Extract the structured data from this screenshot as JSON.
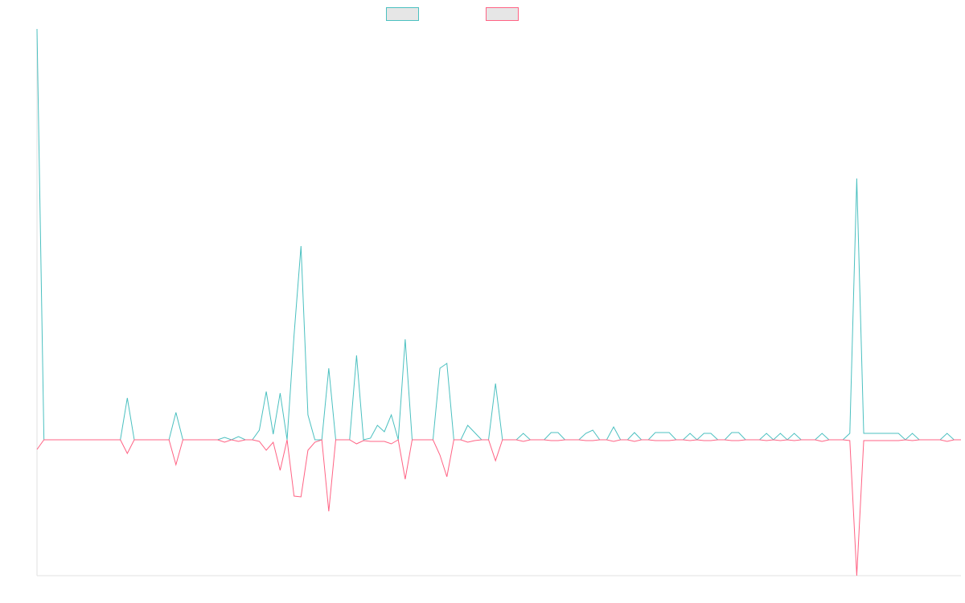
{
  "chart_data": {
    "type": "line",
    "categories": [
      null,
      null,
      null,
      null,
      null,
      null,
      null,
      null,
      null,
      null,
      null,
      null,
      null,
      null,
      null,
      null,
      null,
      null,
      null,
      null,
      null,
      null,
      null,
      null,
      null,
      null,
      null,
      null,
      null,
      null,
      null,
      null,
      null,
      null,
      null,
      null,
      null,
      null,
      null,
      null,
      null,
      null,
      null,
      null,
      null,
      null,
      null,
      null,
      null,
      null,
      null,
      null,
      null,
      null,
      null,
      null,
      null,
      null,
      null,
      null,
      null,
      null,
      null,
      null,
      null,
      null,
      null,
      null,
      null,
      null,
      null,
      null,
      null,
      null,
      null,
      null,
      null,
      null,
      null,
      null,
      null,
      null,
      null,
      null,
      null,
      null,
      null,
      null,
      null,
      null,
      null,
      null,
      null,
      null,
      null,
      null,
      null,
      null,
      null,
      null,
      null,
      null,
      null,
      null,
      null,
      null,
      null,
      null,
      null,
      null,
      null,
      null,
      null,
      null,
      null,
      null,
      null,
      null,
      null,
      null,
      null,
      null,
      null,
      null,
      null,
      null,
      null,
      null,
      null,
      null,
      null,
      null,
      null,
      null
    ],
    "ylim": [
      -16.9,
      51.1
    ],
    "legend_fill": "#e6e6e6",
    "series": [
      {
        "color": "#4bc0c0",
        "values": [
          51.1,
          0,
          0,
          0,
          0,
          0,
          0,
          0,
          0,
          0,
          0,
          0,
          0,
          5.2,
          0,
          0,
          0,
          0,
          0,
          0,
          3.4,
          0,
          0,
          0,
          0,
          0,
          0,
          0.3,
          0,
          0.4,
          0,
          0,
          1.2,
          6.0,
          0.7,
          5.8,
          0,
          13,
          24.1,
          3.1,
          0,
          0,
          8.9,
          0,
          0,
          0,
          10.5,
          0,
          0.2,
          1.8,
          1.0,
          3.1,
          0,
          12.5,
          0,
          0,
          0,
          0,
          8.9,
          9.5,
          0,
          0,
          1.8,
          0.9,
          0,
          0,
          7.0,
          0,
          0,
          0,
          0.8,
          0,
          0,
          0,
          0.9,
          0.9,
          0,
          0,
          0,
          0.8,
          1.2,
          0,
          0,
          1.6,
          0,
          0,
          0.9,
          0,
          0,
          0.9,
          0.9,
          0.9,
          0,
          0,
          0.8,
          0,
          0.8,
          0.8,
          0,
          0,
          0.9,
          0.9,
          0,
          0,
          0,
          0.8,
          0,
          0.8,
          0,
          0.8,
          0,
          0,
          0,
          0.8,
          0,
          0,
          0,
          0.8,
          32.5,
          0.8,
          0.8,
          0.8,
          0.8,
          0.8,
          0.8,
          0,
          0.8,
          0,
          0,
          0,
          0,
          0.8,
          0,
          0
        ]
      },
      {
        "color": "#ff6384",
        "values": [
          -1.2,
          0,
          0,
          0,
          0,
          0,
          0,
          0,
          0,
          0,
          0,
          0,
          0,
          -1.7,
          0,
          0,
          0,
          0,
          0,
          0,
          -3.1,
          0,
          0,
          0,
          0,
          0,
          0,
          -0.3,
          0,
          -0.2,
          0,
          0,
          -0.2,
          -1.3,
          -0.3,
          -3.8,
          0,
          -7.0,
          -7.1,
          -1.3,
          -0.3,
          0,
          -8.9,
          0,
          0,
          0,
          -0.5,
          -0.1,
          -0.2,
          -0.2,
          -0.2,
          -0.5,
          0,
          -4.9,
          0,
          0,
          0,
          0,
          -1.9,
          -4.6,
          0,
          0,
          -0.3,
          -0.1,
          0,
          0,
          -2.6,
          0,
          0,
          0,
          -0.2,
          0,
          0,
          0,
          -0.1,
          -0.1,
          0,
          0,
          0,
          -0.1,
          -0.1,
          0,
          0,
          -0.2,
          0,
          0,
          -0.2,
          0,
          0,
          -0.1,
          -0.1,
          -0.1,
          0,
          0,
          -0.1,
          0,
          -0.1,
          -0.1,
          0,
          0,
          -0.1,
          -0.1,
          0,
          0,
          0,
          -0.1,
          0,
          -0.1,
          0,
          -0.1,
          0,
          0,
          0,
          -0.2,
          0,
          0,
          0,
          -0.1,
          -16.9,
          -0.1,
          -0.1,
          -0.1,
          -0.1,
          -0.1,
          -0.1,
          0,
          -0.1,
          0,
          0,
          0,
          0,
          -0.2,
          0,
          0
        ]
      }
    ]
  }
}
